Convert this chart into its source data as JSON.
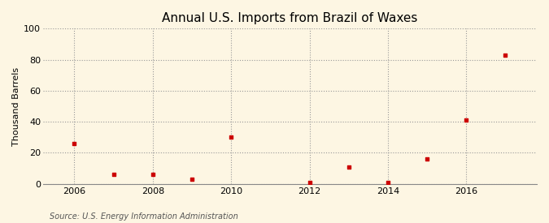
{
  "title": "Annual U.S. Imports from Brazil of Waxes",
  "ylabel": "Thousand Barrels",
  "source": "Source: U.S. Energy Information Administration",
  "years": [
    2006,
    2007,
    2008,
    2009,
    2010,
    2012,
    2013,
    2014,
    2015,
    2016,
    2017
  ],
  "values": [
    26,
    6,
    6,
    3,
    30,
    1,
    11,
    1,
    16,
    41,
    83
  ],
  "xlim": [
    2005.2,
    2017.8
  ],
  "ylim": [
    0,
    100
  ],
  "yticks": [
    0,
    20,
    40,
    60,
    80,
    100
  ],
  "xticks": [
    2006,
    2008,
    2010,
    2012,
    2014,
    2016
  ],
  "marker_color": "#cc0000",
  "marker": "s",
  "marker_size": 3.5,
  "bg_color": "#fdf6e3",
  "grid_color": "#999999",
  "title_fontsize": 11,
  "title_fontweight": "normal",
  "label_fontsize": 8,
  "tick_fontsize": 8,
  "source_fontsize": 7
}
